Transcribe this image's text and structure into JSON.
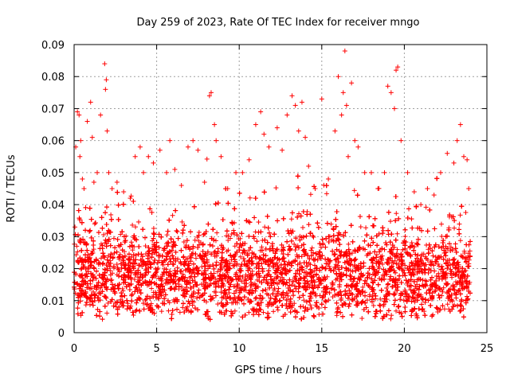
{
  "chart_data": {
    "type": "scatter",
    "title": "Day 259 of 2023, Rate Of TEC Index for receiver mngo",
    "xlabel": "GPS time / hours",
    "ylabel": "ROTI / TECUs",
    "xlim": [
      0,
      25
    ],
    "ylim": [
      0,
      0.09
    ],
    "xticks": [
      0,
      5,
      10,
      15,
      20,
      25
    ],
    "xtick_labels": [
      "0",
      "5",
      "10",
      "15",
      "20",
      "25"
    ],
    "yticks": [
      0,
      0.01,
      0.02,
      0.03,
      0.04,
      0.05,
      0.06,
      0.07,
      0.08,
      0.09
    ],
    "ytick_labels": [
      "0",
      "0.01",
      "0.02",
      "0.03",
      "0.04",
      "0.05",
      "0.06",
      "0.07",
      "0.08",
      "0.09"
    ],
    "grid": true,
    "marker": "+",
    "color": "#ff0000",
    "series": [
      {
        "name": "ROTI",
        "x": [
          0.05,
          0.1,
          0.2,
          0.3,
          0.35,
          0.4,
          0.5,
          0.6,
          0.8,
          1.0,
          1.1,
          1.2,
          1.4,
          1.6,
          1.85,
          1.9,
          1.95,
          2.0,
          2.1,
          2.3,
          2.6,
          3.0,
          3.4,
          3.7,
          4.0,
          4.2,
          4.5,
          4.8,
          5.2,
          5.6,
          5.8,
          6.1,
          6.5,
          6.9,
          7.2,
          7.5,
          7.9,
          8.2,
          8.3,
          8.5,
          8.6,
          8.9,
          9.3,
          9.8,
          10.2,
          10.6,
          11.0,
          11.3,
          11.5,
          11.8,
          12.3,
          12.6,
          12.9,
          13.2,
          13.4,
          13.6,
          13.8,
          14.0,
          14.2,
          14.6,
          15.0,
          15.4,
          15.8,
          16.0,
          16.2,
          16.3,
          16.4,
          16.5,
          16.6,
          16.8,
          17.0,
          17.2,
          17.6,
          18.0,
          18.4,
          18.8,
          19.0,
          19.2,
          19.4,
          19.5,
          19.6,
          19.8,
          20.2,
          20.6,
          21.0,
          21.4,
          21.8,
          22.2,
          22.6,
          23.0,
          23.2,
          23.4,
          23.6,
          23.8,
          23.9
        ],
        "y": [
          0.033,
          0.058,
          0.069,
          0.068,
          0.055,
          0.06,
          0.048,
          0.045,
          0.066,
          0.072,
          0.061,
          0.047,
          0.05,
          0.068,
          0.084,
          0.076,
          0.079,
          0.063,
          0.05,
          0.045,
          0.047,
          0.044,
          0.042,
          0.055,
          0.058,
          0.05,
          0.055,
          0.053,
          0.057,
          0.05,
          0.06,
          0.051,
          0.046,
          0.058,
          0.06,
          0.057,
          0.047,
          0.074,
          0.075,
          0.065,
          0.06,
          0.055,
          0.045,
          0.05,
          0.05,
          0.054,
          0.065,
          0.069,
          0.062,
          0.058,
          0.064,
          0.057,
          0.068,
          0.074,
          0.071,
          0.063,
          0.072,
          0.061,
          0.052,
          0.045,
          0.073,
          0.048,
          0.063,
          0.08,
          0.068,
          0.075,
          0.088,
          0.071,
          0.055,
          0.078,
          0.06,
          0.058,
          0.05,
          0.05,
          0.045,
          0.05,
          0.077,
          0.075,
          0.07,
          0.082,
          0.083,
          0.06,
          0.05,
          0.044,
          0.04,
          0.045,
          0.043,
          0.05,
          0.056,
          0.053,
          0.06,
          0.065,
          0.055,
          0.054,
          0.045
        ]
      }
    ]
  }
}
